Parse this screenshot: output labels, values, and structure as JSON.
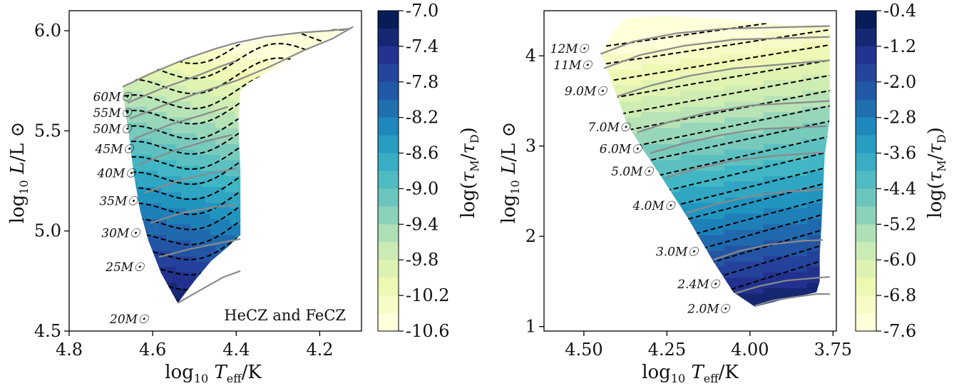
{
  "chart_data": [
    {
      "type": "heatmap",
      "panel": "left",
      "xlabel": "log₁₀ T_eff/K",
      "ylabel": "log₁₀ L/L☉",
      "xlim": [
        4.8,
        4.1
      ],
      "ylim": [
        4.5,
        6.1
      ],
      "x_ticks": [
        4.8,
        4.6,
        4.4,
        4.2
      ],
      "x_tick_labels": [
        "4.8",
        "4.6",
        "4.4",
        "4.2"
      ],
      "y_ticks": [
        4.5,
        5.0,
        5.5,
        6.0
      ],
      "y_tick_labels": [
        "4.5",
        "5.0",
        "5.5",
        "6.0"
      ],
      "annotation": "HeCZ and FeCZ",
      "colorbar": {
        "label": "log(τ_M/τ_D)",
        "range": [
          -10.6,
          -7.0
        ],
        "ticks": [
          -7.0,
          -7.4,
          -7.8,
          -8.2,
          -8.6,
          -9.0,
          -9.4,
          -9.8,
          -10.2,
          -10.6
        ],
        "tick_labels": [
          "-7.0",
          "-7.4",
          "-7.8",
          "-8.2",
          "-8.6",
          "-9.0",
          "-9.4",
          "-9.8",
          "-10.2",
          "-10.6"
        ],
        "colormap": "YlGnBu"
      },
      "mass_labels": [
        {
          "text": "60M☉",
          "x": 4.65,
          "y": 5.67
        },
        {
          "text": "55M☉",
          "x": 4.65,
          "y": 5.59
        },
        {
          "text": "50M☉",
          "x": 4.65,
          "y": 5.51
        },
        {
          "text": "45M☉",
          "x": 4.645,
          "y": 5.41
        },
        {
          "text": "40M☉",
          "x": 4.64,
          "y": 5.29
        },
        {
          "text": "35M☉",
          "x": 4.635,
          "y": 5.15
        },
        {
          "text": "30M☉",
          "x": 4.63,
          "y": 4.99
        },
        {
          "text": "25M☉",
          "x": 4.62,
          "y": 4.82
        },
        {
          "text": "20M☉",
          "x": 4.61,
          "y": 4.56
        }
      ],
      "tracks": [
        [
          [
            4.672,
            5.72
          ],
          [
            4.6,
            5.79
          ],
          [
            4.52,
            5.86
          ],
          [
            4.45,
            5.91
          ],
          [
            4.4,
            5.94
          ]
        ],
        [
          [
            4.66,
            5.64
          ],
          [
            4.58,
            5.71
          ],
          [
            4.5,
            5.77
          ],
          [
            4.44,
            5.82
          ],
          [
            4.4,
            5.85
          ]
        ],
        [
          [
            4.655,
            5.56
          ],
          [
            4.57,
            5.63
          ],
          [
            4.49,
            5.69
          ],
          [
            4.43,
            5.73
          ],
          [
            4.4,
            5.75
          ]
        ],
        [
          [
            4.645,
            5.46
          ],
          [
            4.56,
            5.53
          ],
          [
            4.48,
            5.58
          ],
          [
            4.42,
            5.62
          ]
        ],
        [
          [
            4.635,
            5.33
          ],
          [
            4.55,
            5.4
          ],
          [
            4.47,
            5.45
          ],
          [
            4.41,
            5.48
          ]
        ],
        [
          [
            4.62,
            5.19
          ],
          [
            4.54,
            5.25
          ],
          [
            4.46,
            5.29
          ],
          [
            4.4,
            5.31
          ]
        ],
        [
          [
            4.605,
            5.04
          ],
          [
            4.53,
            5.09
          ],
          [
            4.45,
            5.12
          ],
          [
            4.4,
            5.13
          ]
        ],
        [
          [
            4.585,
            4.87
          ],
          [
            4.51,
            4.91
          ],
          [
            4.44,
            4.94
          ],
          [
            4.39,
            4.96
          ]
        ],
        [
          [
            4.54,
            4.64
          ],
          [
            4.49,
            4.7
          ],
          [
            4.43,
            4.77
          ],
          [
            4.39,
            4.8
          ]
        ],
        [
          [
            4.4,
            5.94
          ],
          [
            4.33,
            5.97
          ],
          [
            4.25,
            5.99
          ],
          [
            4.18,
            6.0
          ],
          [
            4.13,
            6.01
          ]
        ],
        [
          [
            4.4,
            5.75
          ],
          [
            4.32,
            5.82
          ],
          [
            4.24,
            5.9
          ],
          [
            4.17,
            5.96
          ],
          [
            4.12,
            6.02
          ]
        ]
      ]
    },
    {
      "type": "heatmap",
      "panel": "right",
      "xlabel": "log₁₀ T_eff/K",
      "ylabel": "log₁₀ L/L☉",
      "xlim": [
        4.62,
        3.74
      ],
      "ylim": [
        0.95,
        4.5
      ],
      "x_ticks": [
        4.5,
        4.25,
        4.0,
        3.75
      ],
      "x_tick_labels": [
        "4.50",
        "4.25",
        "4.00",
        "3.75"
      ],
      "y_ticks": [
        1,
        2,
        3,
        4
      ],
      "y_tick_labels": [
        "1",
        "2",
        "3",
        "4"
      ],
      "colorbar": {
        "label": "log(τ_M/τ_D)",
        "range": [
          -7.6,
          -0.4
        ],
        "ticks": [
          -0.4,
          -1.2,
          -2.0,
          -2.8,
          -3.6,
          -4.4,
          -5.2,
          -6.0,
          -6.8,
          -7.6
        ],
        "tick_labels": [
          "-0.4",
          "-1.2",
          "-2.0",
          "-2.8",
          "-3.6",
          "-4.4",
          "-5.2",
          "-6.0",
          "-6.8",
          "-7.6"
        ],
        "colormap": "YlGnBu"
      },
      "mass_labels": [
        {
          "text": "12M☉",
          "x": 4.485,
          "y": 4.08
        },
        {
          "text": "11M☉",
          "x": 4.475,
          "y": 3.9
        },
        {
          "text": "9.0M☉",
          "x": 4.43,
          "y": 3.61
        },
        {
          "text": "7.0M☉",
          "x": 4.36,
          "y": 3.21
        },
        {
          "text": "6.0M☉",
          "x": 4.325,
          "y": 2.97
        },
        {
          "text": "5.0M☉",
          "x": 4.29,
          "y": 2.72
        },
        {
          "text": "4.0M☉",
          "x": 4.225,
          "y": 2.34
        },
        {
          "text": "3.0M☉",
          "x": 4.155,
          "y": 1.83
        },
        {
          "text": "2.4M☉",
          "x": 4.09,
          "y": 1.47
        },
        {
          "text": "2.0M☉",
          "x": 4.06,
          "y": 1.2
        }
      ],
      "tracks": [
        [
          [
            4.45,
            4.02
          ],
          [
            4.35,
            4.16
          ],
          [
            4.22,
            4.25
          ],
          [
            4.08,
            4.3
          ],
          [
            3.76,
            4.33
          ]
        ],
        [
          [
            4.44,
            3.86
          ],
          [
            4.33,
            4.01
          ],
          [
            4.2,
            4.11
          ],
          [
            4.05,
            4.18
          ],
          [
            3.76,
            4.21
          ]
        ],
        [
          [
            4.4,
            3.55
          ],
          [
            4.3,
            3.67
          ],
          [
            4.18,
            3.78
          ],
          [
            4.05,
            3.86
          ],
          [
            3.76,
            3.95
          ]
        ],
        [
          [
            4.34,
            3.15
          ],
          [
            4.24,
            3.27
          ],
          [
            4.13,
            3.37
          ],
          [
            4.0,
            3.45
          ],
          [
            3.76,
            3.5
          ]
        ],
        [
          [
            4.3,
            2.92
          ],
          [
            4.2,
            3.03
          ],
          [
            4.09,
            3.12
          ],
          [
            3.97,
            3.19
          ],
          [
            3.77,
            3.22
          ]
        ],
        [
          [
            4.255,
            2.65
          ],
          [
            4.16,
            2.75
          ],
          [
            4.05,
            2.84
          ],
          [
            3.93,
            2.89
          ],
          [
            3.78,
            2.93
          ]
        ],
        [
          [
            4.19,
            2.26
          ],
          [
            4.1,
            2.36
          ],
          [
            3.99,
            2.45
          ],
          [
            3.88,
            2.5
          ],
          [
            3.78,
            2.52
          ]
        ],
        [
          [
            4.11,
            1.74
          ],
          [
            4.03,
            1.84
          ],
          [
            3.94,
            1.91
          ],
          [
            3.84,
            1.95
          ],
          [
            3.78,
            1.96
          ]
        ],
        [
          [
            4.045,
            1.37
          ],
          [
            3.97,
            1.45
          ],
          [
            3.89,
            1.51
          ],
          [
            3.8,
            1.54
          ],
          [
            3.76,
            1.55
          ]
        ],
        [
          [
            3.985,
            1.23
          ],
          [
            3.93,
            1.29
          ],
          [
            3.86,
            1.33
          ],
          [
            3.8,
            1.36
          ],
          [
            3.76,
            1.36
          ]
        ]
      ]
    }
  ]
}
